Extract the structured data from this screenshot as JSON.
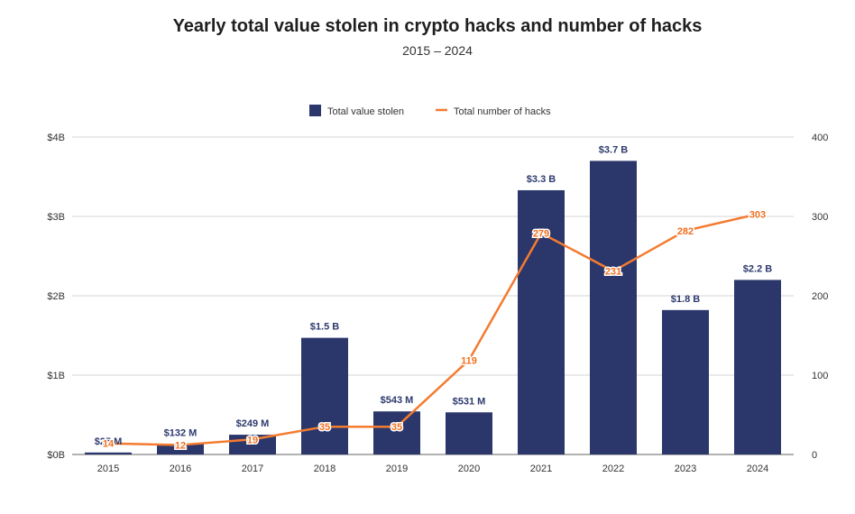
{
  "chart_data": {
    "type": "bar",
    "title": "Yearly total value stolen in crypto hacks and number of hacks",
    "subtitle": "2015 – 2024",
    "categories": [
      "2015",
      "2016",
      "2017",
      "2018",
      "2019",
      "2020",
      "2021",
      "2022",
      "2023",
      "2024"
    ],
    "series": [
      {
        "name": "Total value stolen",
        "type": "bar",
        "axis": "left",
        "color": "#2b376b",
        "unit": "USD billions",
        "values": [
          0.025,
          0.132,
          0.249,
          1.47,
          0.543,
          0.531,
          3.33,
          3.7,
          1.82,
          2.2
        ],
        "labels": [
          "$25  M",
          "$132  M",
          "$249  M",
          "$1.5 B",
          "$543  M",
          "$531  M",
          "$3.3 B",
          "$3.7 B",
          "$1.8 B",
          "$2.2 B"
        ]
      },
      {
        "name": "Total number of hacks",
        "type": "line",
        "axis": "right",
        "color": "#f47b30",
        "values": [
          14,
          12,
          19,
          35,
          35,
          119,
          279,
          231,
          282,
          303
        ],
        "labels": [
          "14",
          "12",
          "19",
          "35",
          "35",
          "119",
          "279",
          "231",
          "282",
          "303"
        ]
      }
    ],
    "y_left": {
      "ylim": [
        0,
        4
      ],
      "ticks": [
        0,
        1,
        2,
        3,
        4
      ],
      "tick_labels": [
        "$0B",
        "$1B",
        "$2B",
        "$3B",
        "$4B"
      ]
    },
    "y_right": {
      "ylim": [
        0,
        400
      ],
      "ticks": [
        0,
        100,
        200,
        300,
        400
      ],
      "tick_labels": [
        "0",
        "100",
        "200",
        "300",
        "400"
      ]
    },
    "grid": true,
    "legend_position": "top-center",
    "xlabel": "",
    "ylabel": ""
  }
}
